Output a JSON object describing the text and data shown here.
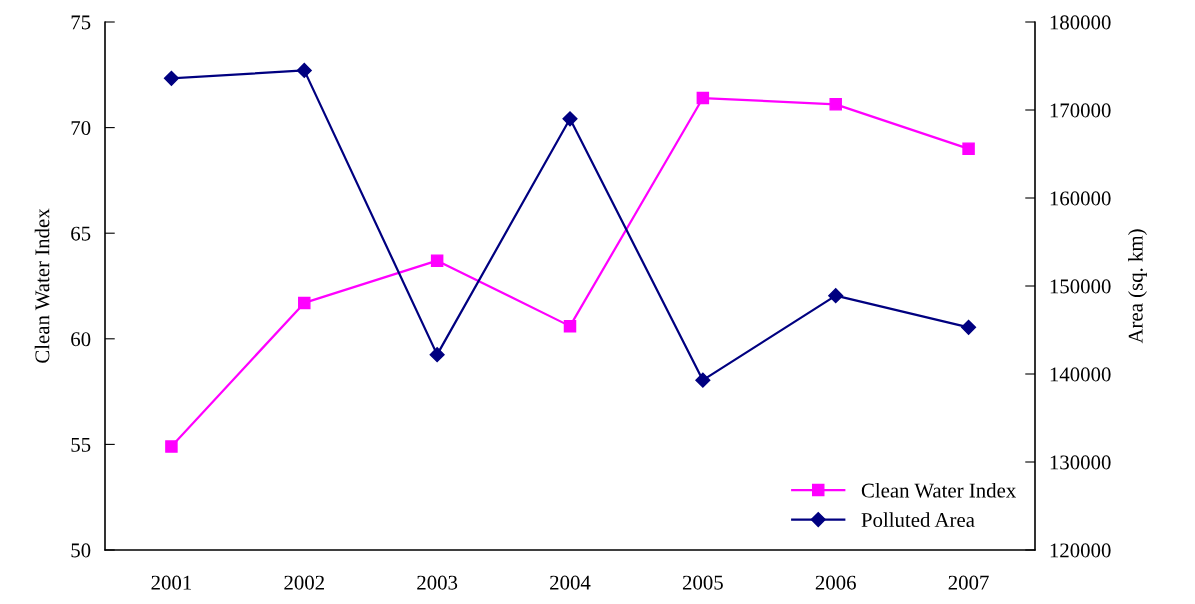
{
  "chart_data": {
    "type": "line",
    "ylabel": "Clean Water Index",
    "y2label": "Area (sq. km)",
    "categories": [
      "2001",
      "2002",
      "2003",
      "2004",
      "2005",
      "2006",
      "2007"
    ],
    "series": [
      {
        "name": "Clean Water Index",
        "color": "#ff00ff",
        "marker": "square",
        "values": [
          54.9,
          61.7,
          63.7,
          60.6,
          71.4,
          71.1,
          69.0
        ]
      },
      {
        "name": "Polluted Area",
        "color": "#000080",
        "marker": "diamond",
        "axis": "y2",
        "values": [
          173600,
          174500,
          142200,
          169000,
          139300,
          148900,
          145300
        ]
      }
    ],
    "ylim": [
      50,
      75
    ],
    "yticks": [
      50,
      55,
      60,
      65,
      70,
      75
    ],
    "y2lim": [
      120000,
      180000
    ],
    "y2ticks": [
      120000,
      130000,
      140000,
      150000,
      160000,
      170000,
      180000
    ],
    "grid": false,
    "legend": "bottom right",
    "line_style": "solid"
  }
}
